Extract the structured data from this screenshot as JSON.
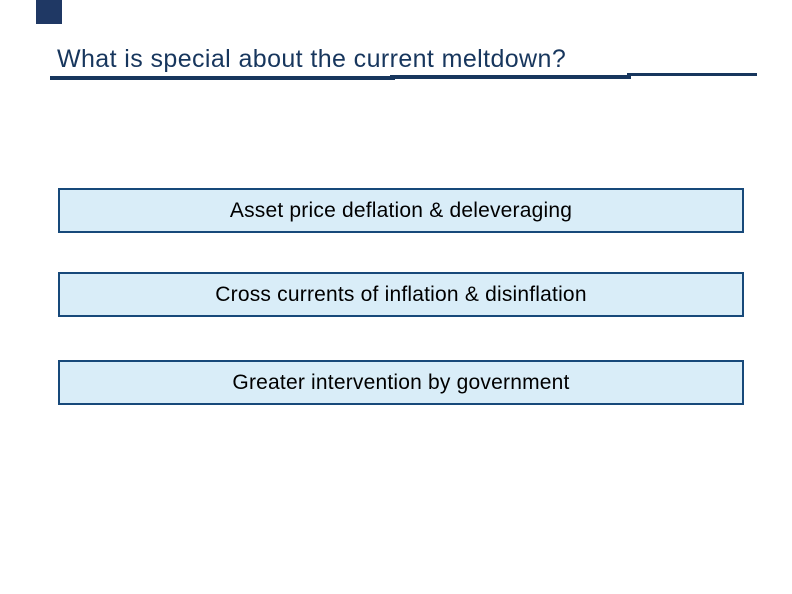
{
  "slide": {
    "title": {
      "text": "What is special about the current meltdown?"
    },
    "boxes": [
      {
        "label": "Asset price deflation & deleveraging"
      },
      {
        "label": "Cross currents of inflation & disinflation"
      },
      {
        "label": "Greater intervention by government"
      }
    ],
    "colors": {
      "background": "#ffffff",
      "title_text": "#17365d",
      "underline": "#17365d",
      "corner_marker": "#1f3864",
      "box_fill": "#d9edf8",
      "box_border": "#17497a",
      "box_text": "#000000"
    }
  }
}
